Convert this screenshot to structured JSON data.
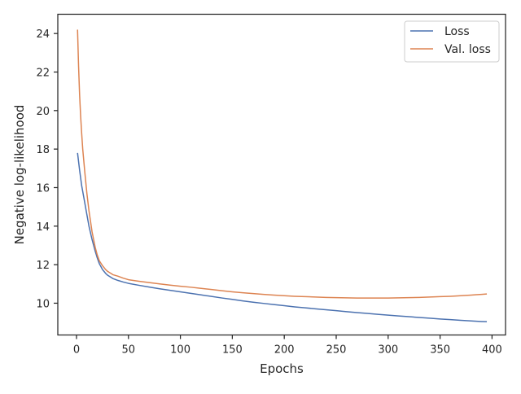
{
  "chart_data": {
    "type": "line",
    "title": "",
    "xlabel": "Epochs",
    "ylabel": "Negative log-likelihood",
    "xlim": [
      -18,
      413
    ],
    "ylim": [
      8.35,
      25.0
    ],
    "x_ticks": [
      0,
      50,
      100,
      150,
      200,
      250,
      300,
      350,
      400
    ],
    "y_ticks": [
      10,
      12,
      14,
      16,
      18,
      20,
      22,
      24
    ],
    "grid": false,
    "legend_position": "top-right",
    "series": [
      {
        "name": "Loss",
        "color": "#4c72b0",
        "x": [
          1,
          3,
          5,
          8,
          10,
          12,
          15,
          18,
          20,
          22,
          25,
          28,
          30,
          33,
          35,
          40,
          45,
          50,
          60,
          70,
          80,
          90,
          100,
          110,
          120,
          130,
          140,
          150,
          160,
          170,
          180,
          190,
          200,
          210,
          220,
          230,
          240,
          250,
          260,
          270,
          280,
          290,
          300,
          310,
          320,
          330,
          340,
          350,
          360,
          370,
          380,
          390,
          395
        ],
        "y": [
          17.8,
          16.9,
          16.1,
          15.2,
          14.6,
          14.0,
          13.3,
          12.7,
          12.35,
          12.05,
          11.75,
          11.55,
          11.45,
          11.35,
          11.28,
          11.18,
          11.1,
          11.03,
          10.93,
          10.84,
          10.75,
          10.67,
          10.59,
          10.51,
          10.43,
          10.35,
          10.27,
          10.2,
          10.12,
          10.05,
          9.99,
          9.93,
          9.87,
          9.81,
          9.76,
          9.71,
          9.66,
          9.61,
          9.56,
          9.51,
          9.47,
          9.42,
          9.38,
          9.34,
          9.3,
          9.26,
          9.22,
          9.18,
          9.15,
          9.11,
          9.08,
          9.05,
          9.04
        ]
      },
      {
        "name": "Val. loss",
        "color": "#dd8452",
        "x": [
          1,
          2,
          3,
          4,
          5,
          6,
          8,
          10,
          12,
          15,
          18,
          20,
          22,
          25,
          28,
          30,
          33,
          35,
          40,
          45,
          50,
          60,
          70,
          80,
          90,
          100,
          110,
          120,
          130,
          140,
          150,
          160,
          170,
          180,
          190,
          200,
          210,
          220,
          230,
          240,
          250,
          260,
          270,
          280,
          290,
          300,
          310,
          320,
          330,
          340,
          350,
          360,
          370,
          380,
          385,
          390,
          395
        ],
        "y": [
          24.2,
          22.3,
          20.8,
          19.7,
          18.8,
          18.0,
          16.8,
          15.7,
          14.8,
          13.7,
          12.9,
          12.5,
          12.2,
          11.95,
          11.75,
          11.65,
          11.55,
          11.48,
          11.4,
          11.3,
          11.22,
          11.14,
          11.07,
          11.0,
          10.94,
          10.88,
          10.83,
          10.77,
          10.71,
          10.65,
          10.59,
          10.54,
          10.5,
          10.46,
          10.42,
          10.39,
          10.36,
          10.34,
          10.32,
          10.3,
          10.29,
          10.28,
          10.27,
          10.27,
          10.27,
          10.27,
          10.28,
          10.29,
          10.3,
          10.32,
          10.34,
          10.36,
          10.39,
          10.42,
          10.44,
          10.46,
          10.48
        ]
      }
    ]
  }
}
